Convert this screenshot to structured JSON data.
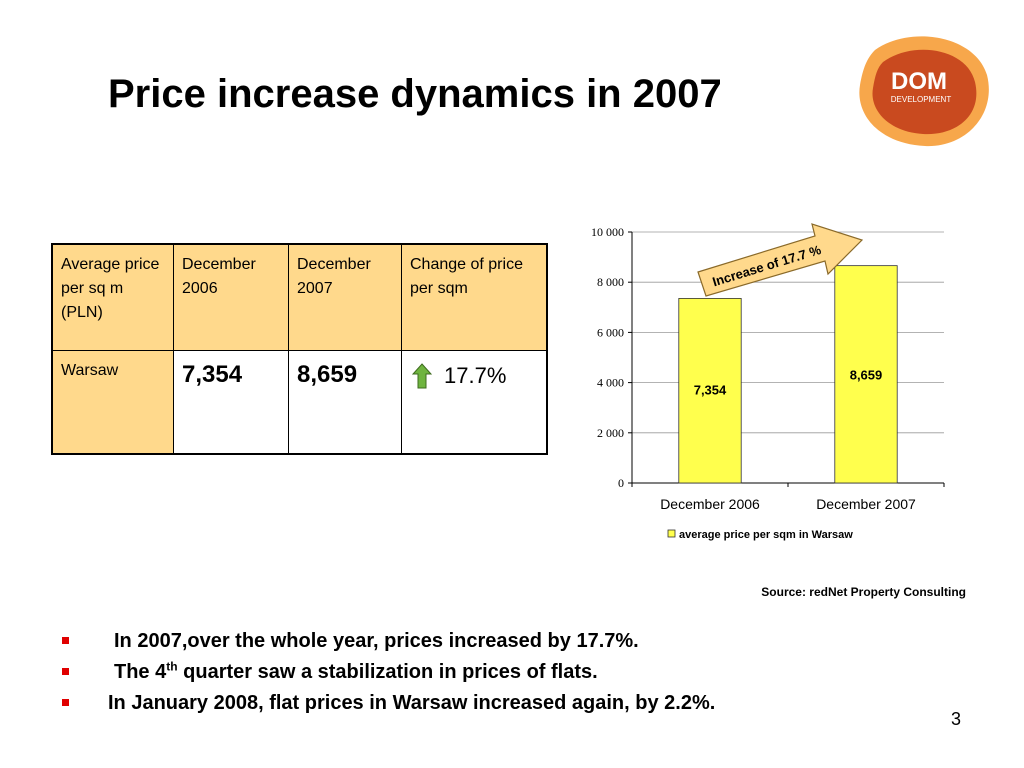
{
  "slide": {
    "title": "Price increase dynamics in 2007",
    "page_number": "3",
    "source": "Source: redNet Property Consulting"
  },
  "logo": {
    "line1": "DOM",
    "line2": "DEVELOPMENT",
    "colors": {
      "outer": "#f7a74b",
      "inner": "#c94a1f"
    }
  },
  "table": {
    "headers": [
      "Average price per sq m (PLN)",
      "December 2006",
      "December 2007",
      "Change of price per sqm"
    ],
    "row": {
      "city": "Warsaw",
      "dec_2006": "7,354",
      "dec_2007": "8,659",
      "change": "17.7%",
      "change_icon": "up-arrow-icon"
    }
  },
  "bullets": [
    {
      "text": "In 2007,over the whole year, prices increased by 17.7%."
    },
    {
      "pre": "The 4",
      "sup": "th",
      "post": " quarter saw a stabilization in prices of flats."
    },
    {
      "text": "In January 2008, flat prices in Warsaw increased again, by 2.2%."
    }
  ],
  "chart_data": {
    "type": "bar",
    "categories": [
      "December 2006",
      "December 2007"
    ],
    "series": [
      {
        "name": "average price per sqm in Warsaw",
        "values": [
          7354,
          8659
        ],
        "labels": [
          "7,354",
          "8,659"
        ]
      }
    ],
    "ylim": [
      0,
      10000
    ],
    "yticks": [
      0,
      2000,
      4000,
      6000,
      8000,
      10000
    ],
    "ytick_labels": [
      "0",
      "2 000",
      "4 000",
      "6 000",
      "8 000",
      "10 000"
    ],
    "grid": true,
    "legend": "bottom",
    "annotation": "Increase of 17.7 %",
    "colors": {
      "bar": "#ffff4d",
      "annotation_fill": "#ffd98c"
    }
  }
}
